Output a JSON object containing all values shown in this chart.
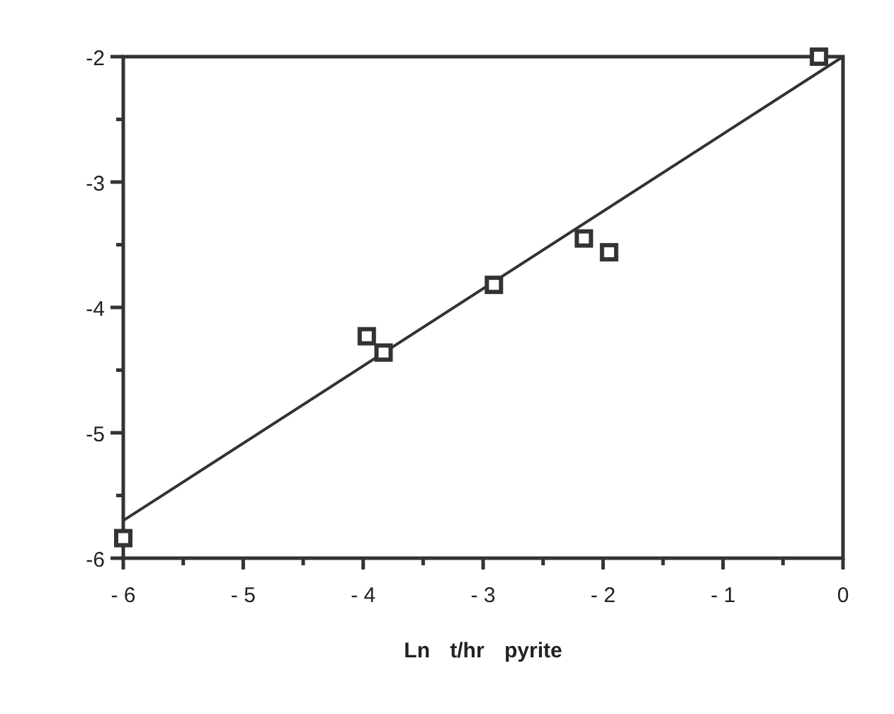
{
  "chart_data": {
    "type": "scatter",
    "xlabel": "Ln t/hr pyrite",
    "xlim": [
      -6,
      0
    ],
    "ylim": [
      -6,
      -2
    ],
    "xticks": [
      {
        "value": -6,
        "label": "- 6"
      },
      {
        "value": -5.5,
        "label": null
      },
      {
        "value": -5,
        "label": "- 5"
      },
      {
        "value": -4.5,
        "label": null
      },
      {
        "value": -4,
        "label": "- 4"
      },
      {
        "value": -3.5,
        "label": null
      },
      {
        "value": -3,
        "label": "- 3"
      },
      {
        "value": -2.5,
        "label": null
      },
      {
        "value": -2,
        "label": "- 2"
      },
      {
        "value": -1.5,
        "label": null
      },
      {
        "value": -1,
        "label": "- 1"
      },
      {
        "value": -0.5,
        "label": null
      },
      {
        "value": 0,
        "label": "0"
      }
    ],
    "yticks": [
      -6,
      {
        "value": -5.5,
        "label": null
      },
      -5,
      {
        "value": -4.5,
        "label": null
      },
      -4,
      {
        "value": -3.5,
        "label": null
      },
      -3,
      {
        "value": -2.5,
        "label": null
      },
      -2
    ],
    "series": [
      {
        "color": "#333333",
        "x": [
          -6.0,
          -3.97,
          -3.83,
          -2.91,
          -2.16,
          -1.95,
          -0.2
        ],
        "values": [
          -5.84,
          -4.23,
          -4.36,
          -3.82,
          -3.45,
          -3.56,
          -2.0
        ],
        "marker": "square"
      },
      {
        "type": "line",
        "color": "#333333",
        "x": [
          -6,
          0
        ],
        "values": [
          -5.7,
          -2
        ],
        "line_style": "solid",
        "marker": "none"
      }
    ],
    "grid": false
  }
}
